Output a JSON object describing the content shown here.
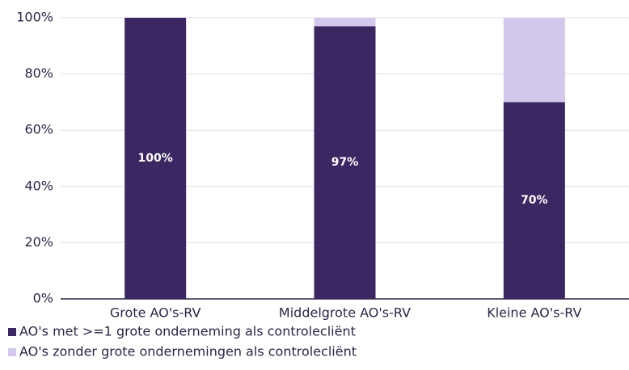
{
  "chart_data": {
    "type": "stacked_bar",
    "categories": [
      "Grote AO's-RV",
      "Middelgrote AO's-RV",
      "Kleine AO's-RV"
    ],
    "series": [
      {
        "name": "AO's met >=1 grote onderneming als controlecliënt",
        "color": "#3b2762",
        "values": [
          100,
          97,
          70
        ],
        "value_labels": [
          "100%",
          "97%",
          "70%"
        ]
      },
      {
        "name": "AO's zonder grote ondernemingen als controlecliënt",
        "color": "#d3c8ec",
        "values": [
          0,
          3,
          30
        ]
      }
    ],
    "ylim": [
      0,
      100
    ],
    "yticks": [
      {
        "value": 0,
        "label": "0%"
      },
      {
        "value": 20,
        "label": "20%"
      },
      {
        "value": 40,
        "label": "40%"
      },
      {
        "value": 60,
        "label": "60%"
      },
      {
        "value": 80,
        "label": "80%"
      },
      {
        "value": 100,
        "label": "100%"
      }
    ],
    "grid": true
  }
}
